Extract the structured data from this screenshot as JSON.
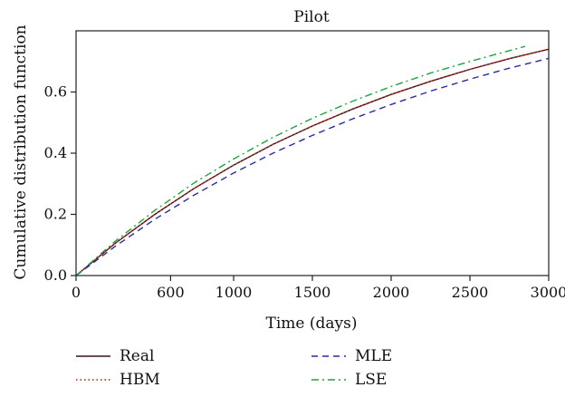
{
  "chart_data": {
    "type": "line",
    "title": "Pilot",
    "xlabel": "Time (days)",
    "ylabel": "Cumulative distribution function",
    "xlim": [
      0,
      3000
    ],
    "ylim": [
      0,
      0.8
    ],
    "xticks": [
      0,
      600,
      1000,
      1500,
      2000,
      2500,
      3000
    ],
    "xtick_labels": [
      "0",
      "600",
      "1000",
      "1500",
      "2000",
      "2500",
      "3000"
    ],
    "yticks": [
      0.0,
      0.2,
      0.4,
      0.6
    ],
    "ytick_labels": [
      "0.0",
      "0.2",
      "0.4",
      "0.6"
    ],
    "grid": false,
    "legend_position": "bottom",
    "series": [
      {
        "name": "Real",
        "color": "#3b1010",
        "dash": "solid",
        "x": [
          0,
          250,
          500,
          750,
          1000,
          1250,
          1500,
          1750,
          2000,
          2250,
          2500,
          2750,
          3000
        ],
        "y": [
          0,
          0.106,
          0.2,
          0.285,
          0.361,
          0.429,
          0.489,
          0.543,
          0.592,
          0.635,
          0.674,
          0.709,
          0.74
        ]
      },
      {
        "name": "HBM",
        "color": "#d9352b",
        "dash": "dotted",
        "x": [
          0,
          250,
          500,
          750,
          1000,
          1250,
          1500,
          1750,
          2000,
          2250,
          2500,
          2750,
          3000
        ],
        "y": [
          0,
          0.106,
          0.2,
          0.285,
          0.361,
          0.429,
          0.489,
          0.543,
          0.592,
          0.635,
          0.674,
          0.709,
          0.74
        ]
      },
      {
        "name": "MLE",
        "color": "#2a2aa0",
        "dash": "dashed",
        "x": [
          0,
          250,
          500,
          750,
          1000,
          1250,
          1500,
          1750,
          2000,
          2250,
          2500,
          2750,
          3000
        ],
        "y": [
          0,
          0.096,
          0.184,
          0.263,
          0.335,
          0.4,
          0.458,
          0.511,
          0.559,
          0.603,
          0.642,
          0.678,
          0.71
        ]
      },
      {
        "name": "LSE",
        "color": "#1fa33a",
        "dash": "dashdot",
        "x": [
          0,
          250,
          500,
          750,
          1000,
          1250,
          1500,
          1750,
          2000,
          2250,
          2500,
          2750,
          2850
        ],
        "y": [
          0,
          0.113,
          0.213,
          0.303,
          0.381,
          0.452,
          0.514,
          0.569,
          0.618,
          0.662,
          0.7,
          0.735,
          0.749
        ]
      }
    ]
  }
}
